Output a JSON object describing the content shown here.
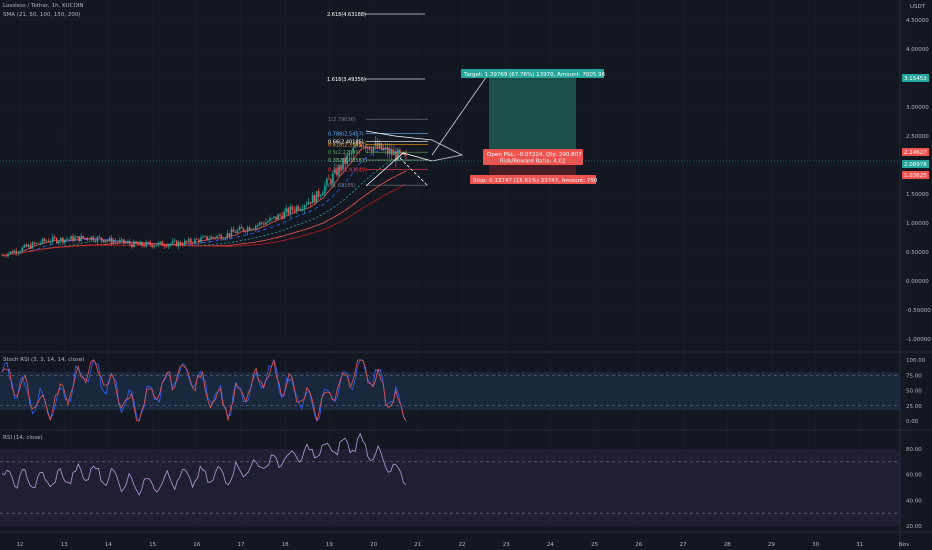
{
  "header": {
    "symbol": "Lossless / Tether, 1h, KUCOIN",
    "sma_label": "SMA (21, 50, 100, 150, 200)"
  },
  "price_axis": {
    "currency": "USDT",
    "ticks": [
      "4.50000",
      "4.00000",
      "3.50000",
      "3.00000",
      "2.50000",
      "2.00000",
      "1.50000",
      "1.00000",
      "0.50000",
      "0.00000",
      "-0.50000",
      "-1.00000"
    ],
    "last_price_labels": [
      "3.15453",
      "2.14627",
      "2.08978",
      "1.03625"
    ]
  },
  "time_axis": {
    "ticks": [
      "12",
      "13",
      "14",
      "15",
      "16",
      "17",
      "18",
      "19",
      "20",
      "21",
      "22",
      "23",
      "24",
      "25",
      "26",
      "27",
      "28",
      "29",
      "30",
      "31",
      "Nov"
    ]
  },
  "fib_extension": [
    {
      "label": "2.618(4.63188)",
      "value": 4.63188
    },
    {
      "label": "1.618(3.49356)",
      "value": 3.49356
    }
  ],
  "fib_retracement": [
    {
      "label": "1(2.79036)",
      "value": 2.79036
    },
    {
      "label": "0.786(2.5457)",
      "value": 2.5457
    },
    {
      "label": "0.66(2.40185)",
      "value": 2.40185
    },
    {
      "label": "0.618(2.35417)",
      "value": 2.35417
    },
    {
      "label": "0.5(2.22099)",
      "value": 2.22099
    },
    {
      "label": "0.382(2.08581)",
      "value": 2.08581
    },
    {
      "label": "0.236(1.92049)",
      "value": 1.92049
    },
    {
      "label": "0(1.65185)",
      "value": 1.65185
    }
  ],
  "position": {
    "target_text": "Target: 1.39769 (67.76%) 13970, Amount: 7005.96",
    "open_pl_text": "Open P&L: -0.07224, Qty: 290.807",
    "rr_text": "Risk/Reward Ratio: 4.02",
    "stop_text": "Stop: 0.33747 (15.61%) 33747, Amount: 750"
  },
  "stoch_rsi": {
    "label": "Stoch RSI (3, 3, 14, 14, close)",
    "ticks": [
      "100.00",
      "75.00",
      "50.00",
      "25.00",
      "0.00"
    ]
  },
  "rsi": {
    "label": "RSI (14, close)",
    "ticks": [
      "80.00",
      "60.00",
      "40.00",
      "20.00"
    ]
  },
  "colors": {
    "background": "#131722",
    "bull": "#26a69a",
    "bear": "#ef5350",
    "target_zone": "#1e5c52",
    "stop_zone": "#5c1e24"
  },
  "chart_data": {
    "type": "candlestick",
    "title": "Lossless / Tether, 1h, KUCOIN",
    "x": [
      "12",
      "13",
      "14",
      "15",
      "16",
      "17",
      "18",
      "19",
      "20",
      "21"
    ],
    "close": [
      0.45,
      0.7,
      0.75,
      0.62,
      0.65,
      0.8,
      1.05,
      1.45,
      2.4,
      2.1
    ],
    "ylim": [
      -1.1,
      4.8
    ],
    "series": [
      {
        "name": "Stoch RSI",
        "values": [
          80,
          20,
          90,
          15,
          85,
          25,
          80,
          20,
          95,
          10
        ]
      },
      {
        "name": "RSI",
        "values": [
          58,
          55,
          62,
          52,
          57,
          60,
          70,
          78,
          85,
          55
        ]
      }
    ]
  }
}
